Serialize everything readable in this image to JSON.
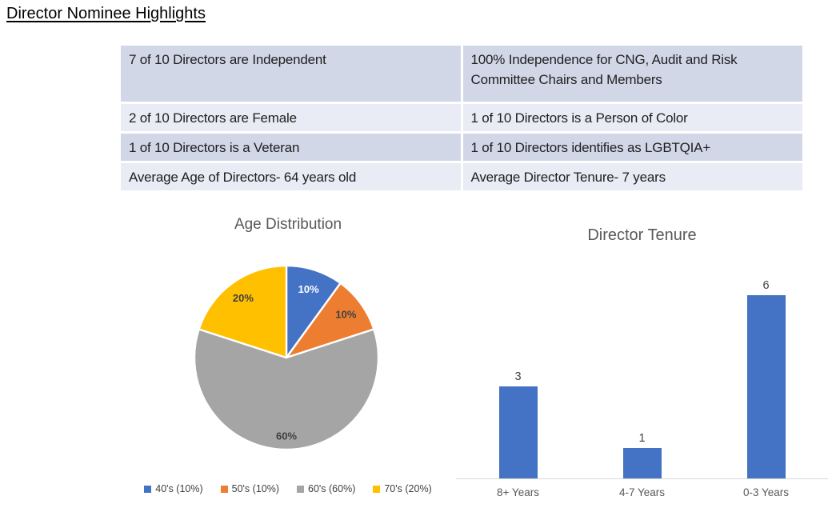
{
  "page": {
    "title": "Director Nominee Highlights"
  },
  "highlights_table": {
    "rows": [
      [
        "7 of 10 Directors are Independent",
        "100% Independence for CNG, Audit and Risk Committee Chairs and Members"
      ],
      [
        "2 of 10 Directors are Female",
        "1 of 10 Directors is a Person of Color"
      ],
      [
        "1 of 10 Directors is a Veteran",
        "1 of 10 Directors identifies as LGBTQIA+"
      ],
      [
        "Average Age of Directors- 64 years old",
        "Average Director Tenure- 7 years"
      ]
    ],
    "row_colors": {
      "dark": "#d2d7e8",
      "light": "#e9ebf5"
    }
  },
  "chart_data": [
    {
      "type": "pie",
      "title": "Age Distribution",
      "categories": [
        "40's (10%)",
        "50's (10%)",
        "60's (60%)",
        "70's (20%)"
      ],
      "values": [
        10,
        10,
        60,
        20
      ],
      "slice_labels": [
        "10%",
        "10%",
        "60%",
        "20%"
      ],
      "colors": [
        "#4472c4",
        "#ed7d31",
        "#a5a5a5",
        "#ffc000"
      ],
      "slice_label_colors": [
        "#ffffff",
        "#404040",
        "#404040",
        "#3f3f3f"
      ],
      "label_radius_fractions": [
        0.78,
        0.8,
        0.85,
        0.8
      ],
      "start_angle_deg": 0,
      "legend_position": "bottom"
    },
    {
      "type": "bar",
      "title": "Director Tenure",
      "categories": [
        "8+ Years",
        "4-7 Years",
        "0-3 Years"
      ],
      "values": [
        3,
        1,
        6
      ],
      "bar_color": "#4472c4",
      "ylim": [
        0,
        6
      ],
      "data_labels": [
        3,
        1,
        6
      ],
      "axis_line_color": "#d9d9d9",
      "grid": false
    }
  ]
}
